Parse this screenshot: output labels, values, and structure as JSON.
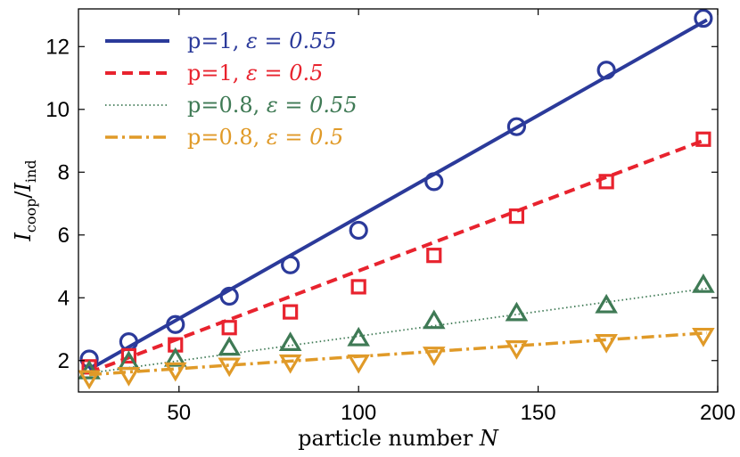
{
  "chart_data": {
    "type": "line",
    "xlabel_text": "particle number",
    "xlabel_var": "N",
    "ylabel_main": "I",
    "ylabel_num_sub": "coop",
    "ylabel_den_sub": "ind",
    "xlim": [
      22,
      200
    ],
    "ylim": [
      1,
      13.2
    ],
    "xticks": [
      50,
      100,
      150,
      200
    ],
    "yticks": [
      2,
      4,
      6,
      8,
      10,
      12
    ],
    "series": [
      {
        "name": "p=1, ε = 0.55",
        "label_p": "p=1,",
        "label_eps": "ε = 0.55",
        "color": "#2b3a9a",
        "line_style": "solid",
        "marker": "circle",
        "fit": [
          [
            25,
            1.72
          ],
          [
            197,
            12.85
          ]
        ],
        "x": [
          25,
          36,
          49,
          64,
          81,
          100,
          121,
          144,
          169,
          196
        ],
        "y": [
          2.05,
          2.6,
          3.15,
          4.05,
          5.05,
          6.15,
          7.7,
          9.45,
          11.25,
          12.9
        ]
      },
      {
        "name": "p=1, ε = 0.5",
        "label_p": "p=1,",
        "label_eps": "ε = 0.5",
        "color": "#e8232e",
        "line_style": "dashed",
        "marker": "square",
        "fit": [
          [
            25,
            1.62
          ],
          [
            197,
            9.05
          ]
        ],
        "x": [
          25,
          36,
          49,
          64,
          81,
          100,
          121,
          144,
          169,
          196
        ],
        "y": [
          1.8,
          2.15,
          2.5,
          3.05,
          3.55,
          4.35,
          5.35,
          6.6,
          7.7,
          9.05
        ]
      },
      {
        "name": "p=0.8, ε = 0.55",
        "label_p": "p=0.8,",
        "label_eps": "ε = 0.55",
        "color": "#3f7a55",
        "line_style": "dotted",
        "marker": "triangle-up",
        "fit": [
          [
            25,
            1.6
          ],
          [
            197,
            4.3
          ]
        ],
        "x": [
          25,
          36,
          49,
          64,
          81,
          100,
          121,
          144,
          169,
          196
        ],
        "y": [
          1.65,
          1.95,
          2.05,
          2.4,
          2.55,
          2.7,
          3.25,
          3.5,
          3.75,
          4.4
        ]
      },
      {
        "name": "p=0.8, ε = 0.5",
        "label_p": "p=0.8,",
        "label_eps": "ε = 0.5",
        "color": "#e09a28",
        "line_style": "dashdot",
        "marker": "triangle-down",
        "fit": [
          [
            25,
            1.55
          ],
          [
            197,
            2.88
          ]
        ],
        "x": [
          25,
          36,
          49,
          64,
          81,
          100,
          121,
          144,
          169,
          196
        ],
        "y": [
          1.45,
          1.55,
          1.7,
          1.85,
          1.95,
          1.95,
          2.2,
          2.4,
          2.6,
          2.8
        ]
      }
    ]
  }
}
